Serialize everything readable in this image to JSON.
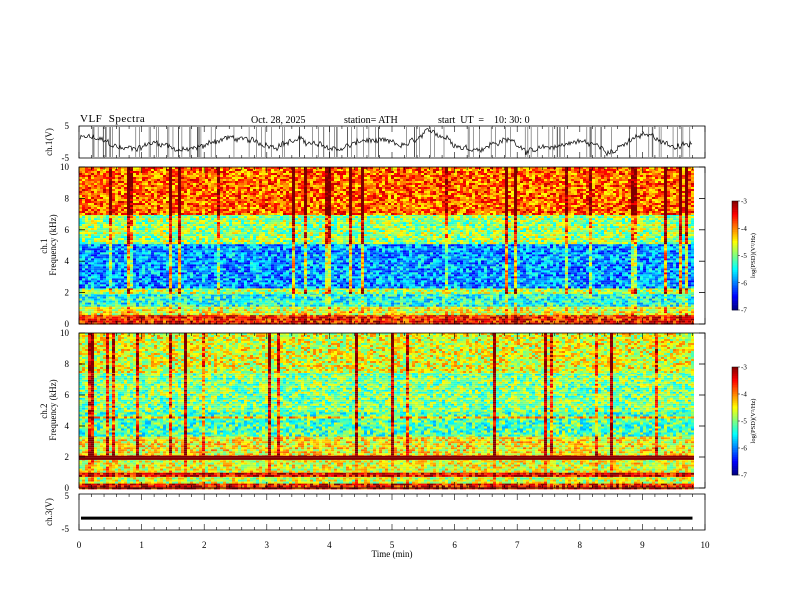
{
  "header": {
    "title": "VLF  Spectra",
    "date": "Oct. 28, 2025",
    "station": "station= ATH",
    "start_ut": "start  UT  =    10: 30: 0"
  },
  "colorbar": {
    "label": "log(PSD)(V²/Hz)",
    "ticks": [
      "-3",
      "-4",
      "-5",
      "-6",
      "-7"
    ]
  },
  "chart_data": [
    {
      "type": "line",
      "name": "ch1-waveform",
      "ylabel": "ch.1(V)",
      "ylim": [
        -5,
        5
      ],
      "yticks": [
        "5",
        "-5"
      ],
      "xlim": [
        0,
        10
      ],
      "description_values": "noisy waveform oscillating roughly between -3 and 2 V across 0-9.8 min"
    },
    {
      "type": "heatmap",
      "name": "ch1-spectrogram",
      "ylabel": "ch.1\nFrequency  (kHz)",
      "ylim": [
        0,
        10
      ],
      "yticks": [
        "0",
        "2",
        "4",
        "6",
        "8",
        "10"
      ],
      "xlim": [
        0,
        10
      ],
      "data_end_min": 9.8,
      "zlim": [
        -7,
        -3
      ],
      "bands": [
        {
          "f": [
            0,
            0.6
          ],
          "level": -3.6
        },
        {
          "f": [
            0.6,
            1.2
          ],
          "level": -4.6
        },
        {
          "f": [
            1.2,
            2.0
          ],
          "level": -5.4
        },
        {
          "f": [
            2.0,
            2.3
          ],
          "level": -4.8
        },
        {
          "f": [
            2.3,
            5.2
          ],
          "level": -5.9
        },
        {
          "f": [
            5.2,
            7.0
          ],
          "level": -4.9
        },
        {
          "f": [
            7.0,
            10
          ],
          "level": -3.9
        }
      ]
    },
    {
      "type": "heatmap",
      "name": "ch2-spectrogram",
      "ylabel": "ch.2\nFrequency  (kHz)",
      "ylim": [
        0,
        10
      ],
      "yticks": [
        "0",
        "2",
        "4",
        "6",
        "8",
        "10"
      ],
      "xlim": [
        0,
        10
      ],
      "data_end_min": 9.8,
      "zlim": [
        -7,
        -3
      ],
      "bands": [
        {
          "f": [
            0,
            0.3
          ],
          "level": -3.5
        },
        {
          "f": [
            0.3,
            0.8
          ],
          "level": -4.7
        },
        {
          "f": [
            0.8,
            1.1
          ],
          "level": -3.4
        },
        {
          "f": [
            1.1,
            1.9
          ],
          "level": -4.6
        },
        {
          "f": [
            1.9,
            2.2
          ],
          "level": -3.6
        },
        {
          "f": [
            2.2,
            3.4
          ],
          "level": -4.5
        },
        {
          "f": [
            3.4,
            5.0
          ],
          "level": -5.2
        },
        {
          "f": [
            5.0,
            7.5
          ],
          "level": -5.0
        },
        {
          "f": [
            7.5,
            10
          ],
          "level": -4.6
        }
      ]
    },
    {
      "type": "line",
      "name": "ch3-waveform",
      "ylabel": "ch.3(V)",
      "ylim": [
        -5,
        5
      ],
      "yticks": [
        "5",
        "0",
        "-5"
      ],
      "xlim": [
        0,
        10
      ],
      "value": -1.7
    }
  ],
  "xaxis": {
    "label": "Time  (min)",
    "ticks": [
      "0",
      "1",
      "2",
      "3",
      "4",
      "5",
      "6",
      "7",
      "8",
      "9",
      "10"
    ]
  }
}
